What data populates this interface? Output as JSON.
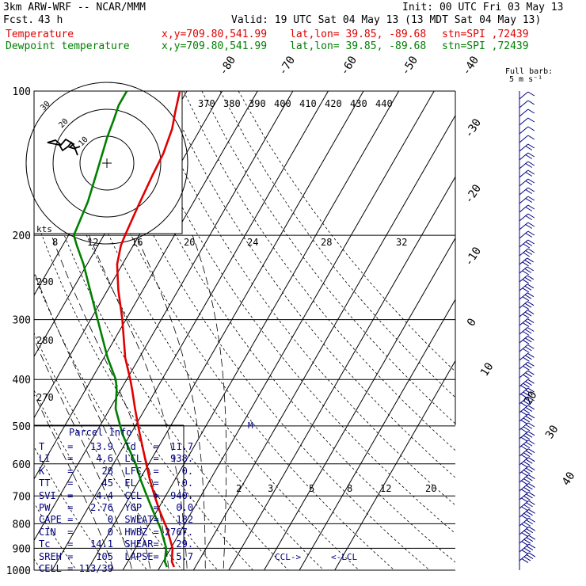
{
  "header": {
    "model": "3km ARW-WRF -- NCAR/MMM",
    "init": "Init: 00 UTC Fri 03 May 13",
    "fcst_label": "Fcst.",
    "fcst_value": "43 h",
    "valid": "Valid: 19 UTC Sat 04 May 13 (13 MDT Sat 04 May 13)",
    "temp_label": "Temperature",
    "dew_label": "Dewpoint temperature",
    "xy": "x,y=709.80,541.99",
    "latlon": "lat,lon= 39.85, -89.68",
    "stn": "stn=SPI ,72439"
  },
  "colors": {
    "temperature": "#e00000",
    "dewpoint": "#008000",
    "panel_text": "#000080",
    "wind": "#000080"
  },
  "barb_legend": {
    "title": "Full barb:",
    "units": "5 m s⁻¹"
  },
  "hodograph": {
    "units": "kts",
    "ring_labels": [
      "30",
      "20",
      "10"
    ]
  },
  "parcel": {
    "title": "Parcel Info",
    "rows": [
      {
        "k1": "T",
        "v1": "13.9",
        "k2": "Td",
        "v2": "11.7"
      },
      {
        "k1": "LI",
        "v1": "4.6",
        "k2": "LCL",
        "v2": "938."
      },
      {
        "k1": "K",
        "v1": "28",
        "k2": "LFC",
        "v2": "0."
      },
      {
        "k1": "TT",
        "v1": "45",
        "k2": "EL",
        "v2": "0."
      },
      {
        "k1": "SVI",
        "v1": "4.4",
        "k2": "CCL",
        "v2": "940."
      },
      {
        "k1": "PW",
        "v1": "2.76",
        "k2": "YGP",
        "v2": "0.0"
      },
      {
        "k1": "CAPE",
        "v1": "0",
        "k2": "SWEAT",
        "v2": "182"
      },
      {
        "k1": "CIN",
        "v1": "0",
        "k2": "HWBZ",
        "v2": "2767."
      },
      {
        "k1": "Tc",
        "v1": "14.1",
        "k2": "SHEAR",
        "v2": "29."
      },
      {
        "k1": "SREH",
        "v1": "105",
        "k2": "LAPSE",
        "v2": "5.7"
      },
      {
        "k1": "CELL",
        "v1": "113/39",
        "k2": "",
        "v2": ""
      }
    ]
  },
  "annotations": {
    "ccl": "CCL->",
    "lcl": "<-LCL",
    "m": "M"
  },
  "chart_data": {
    "type": "line",
    "diagram": "skew-T log-p",
    "y_axis": {
      "label": "",
      "scale": "log",
      "ticks_hPa": [
        100,
        200,
        300,
        400,
        500,
        600,
        700,
        800,
        900,
        1000
      ]
    },
    "isotherm_labels_C": [
      -80,
      -70,
      -60,
      -50,
      -40,
      -30,
      -20,
      -10,
      0,
      10,
      20,
      30,
      40
    ],
    "theta_e_labels_K": [
      370,
      380,
      390,
      400,
      410,
      420,
      430,
      440
    ],
    "theta_labels_K": [
      290,
      280,
      270
    ],
    "upper_mixing_ratio_labels": [
      8,
      12,
      16,
      20,
      24,
      28,
      32
    ],
    "lower_mixing_ratio_labels": [
      2,
      3,
      5,
      8,
      12,
      20
    ],
    "series": [
      {
        "name": "Temperature",
        "p_hPa": [
          985,
          960,
          900,
          820,
          750,
          700,
          650,
          600,
          520,
          460,
          420,
          400,
          360,
          300,
          260,
          230,
          210,
          200,
          175,
          150,
          135,
          120,
          110,
          100
        ],
        "T_C": [
          14,
          12.5,
          10.5,
          5.8,
          0.6,
          -3.1,
          -6.9,
          -10.7,
          -17.4,
          -22.9,
          -26.8,
          -29.0,
          -34,
          -41,
          -47,
          -51.5,
          -53.5,
          -54,
          -55,
          -56,
          -56.5,
          -58,
          -60,
          -62
        ]
      },
      {
        "name": "Dewpoint temperature",
        "p_hPa": [
          985,
          960,
          900,
          820,
          750,
          700,
          650,
          600,
          520,
          460,
          420,
          400,
          360,
          300,
          260,
          230,
          210,
          200,
          170,
          150,
          125,
          115,
          107,
          100
        ],
        "Td_C": [
          12,
          10.5,
          8.7,
          4.0,
          -1.3,
          -5.3,
          -9.5,
          -13.7,
          -22.3,
          -28.4,
          -31.2,
          -33.1,
          -39,
          -48,
          -55,
          -61,
          -66,
          -68.5,
          -70,
          -72,
          -75,
          -76,
          -77,
          -77
        ]
      }
    ]
  }
}
